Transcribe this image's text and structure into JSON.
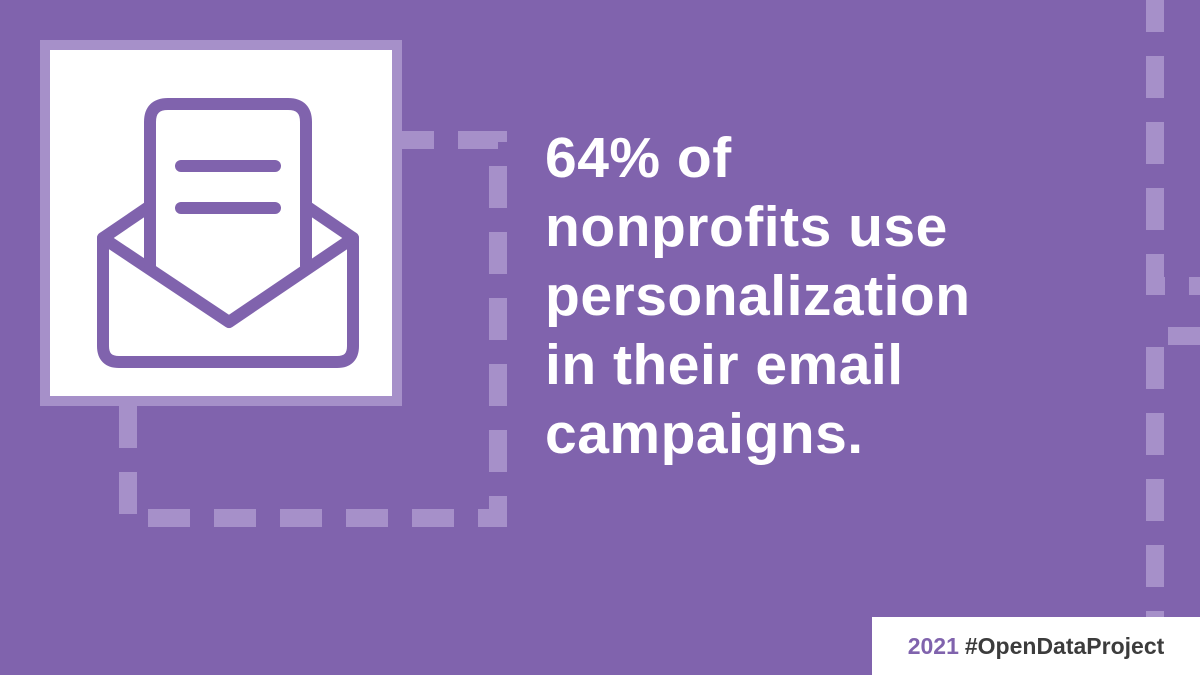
{
  "colors": {
    "background": "#8063ad",
    "dash": "#a690c9",
    "text": "#ffffff",
    "card": "#ffffff",
    "icon_stroke": "#8063ad",
    "tag_year": "#8063ad",
    "tag_hashtag": "#3c3c3c"
  },
  "icon": {
    "name": "open-envelope-with-letter-icon"
  },
  "headline": {
    "lines": [
      "64% of",
      "nonprofits use",
      "personalization",
      "in their email",
      "campaigns."
    ]
  },
  "tag": {
    "year": "2021",
    "hashtag": "#OpenDataProject"
  }
}
